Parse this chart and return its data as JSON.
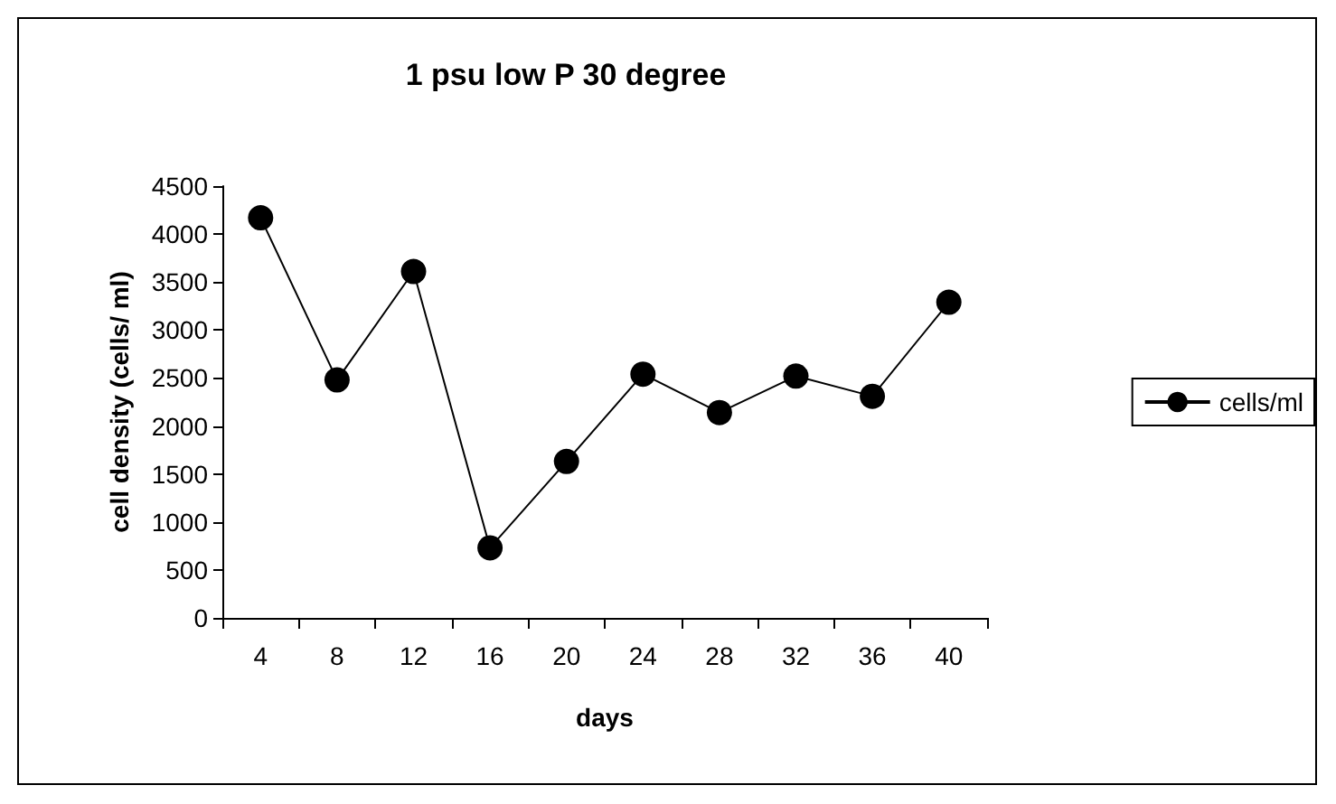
{
  "chart_data": {
    "type": "line",
    "title": "1 psu low P 30 degree",
    "xlabel": "days",
    "ylabel": "cell density (cells/ ml)",
    "categories": [
      "4",
      "8",
      "12",
      "16",
      "20",
      "24",
      "28",
      "32",
      "36",
      "40"
    ],
    "series": [
      {
        "name": "cells/ml",
        "color": "#000000",
        "values": [
          4170,
          2480,
          3610,
          730,
          1630,
          2540,
          2140,
          2520,
          2310,
          3290
        ]
      }
    ],
    "ylim": [
      0,
      4500
    ],
    "yticks": [
      0,
      500,
      1000,
      1500,
      2000,
      2500,
      3000,
      3500,
      4000,
      4500
    ],
    "grid": false,
    "legend": "right",
    "marker": "circle",
    "line_style": "solid"
  }
}
